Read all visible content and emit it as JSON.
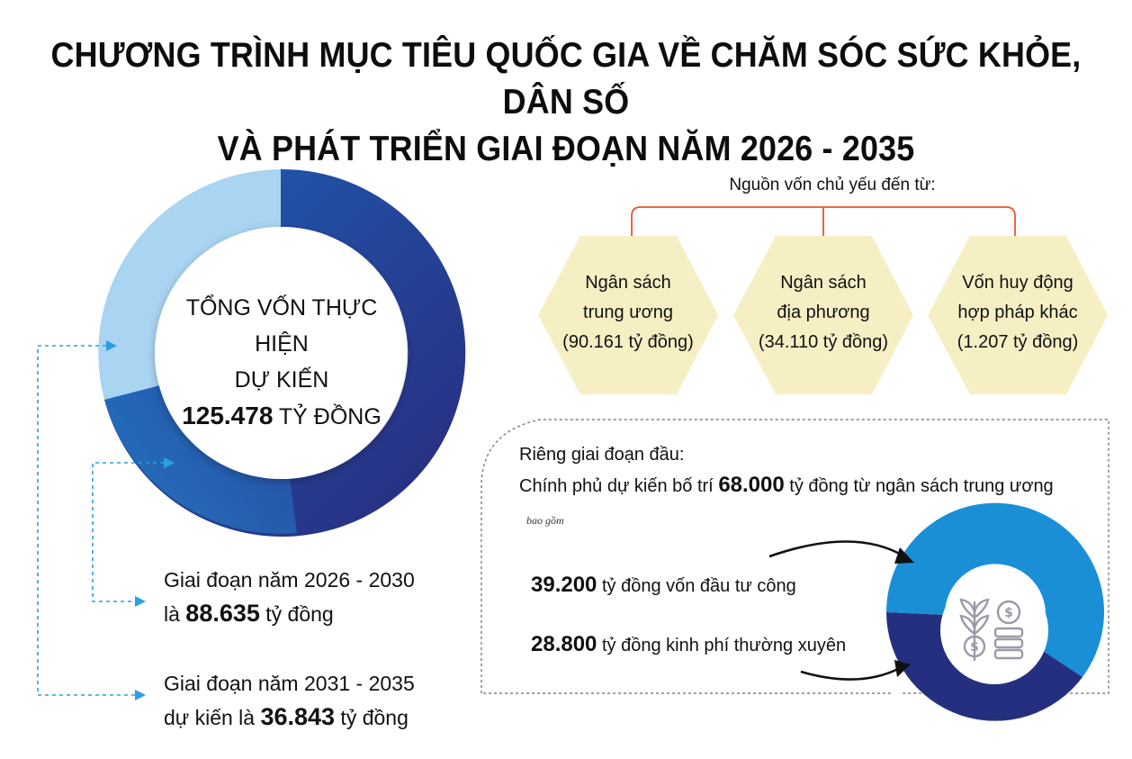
{
  "title": {
    "line1": "CHƯƠNG TRÌNH MỤC TIÊU QUỐC GIA VỀ CHĂM SÓC SỨC KHỎE, DÂN SỐ",
    "line2": "VÀ PHÁT TRIỂN GIAI ĐOẠN NĂM 2026 - 2035"
  },
  "total": {
    "line1": "TỔNG VỐN THỰC HIỆN",
    "line2": "DỰ KIẾN",
    "amount": "125.478",
    "unit": " TỶ ĐỒNG"
  },
  "periods": [
    {
      "line1": "Giai đoạn năm 2026 - 2030",
      "prefix": "là ",
      "amount": "88.635",
      "suffix": " tỷ đồng",
      "value": 88635,
      "color": "#1f63b8"
    },
    {
      "line1": "Giai đoạn năm 2031 - 2035",
      "prefix": "dự kiến là ",
      "amount": "36.843",
      "suffix": " tỷ đồng",
      "value": 36843,
      "color": "#a9d4f2"
    }
  ],
  "sources": {
    "heading": "Nguồn vốn chủ yếu đến từ:",
    "items": [
      {
        "line1": "Ngân sách",
        "line2": "trung ương",
        "line3": "(90.161 tỷ đồng)"
      },
      {
        "line1": "Ngân sách",
        "line2": "địa phương",
        "line3": "(34.110 tỷ đồng)"
      },
      {
        "line1": "Vốn huy động",
        "line2": "hợp pháp khác",
        "line3": "(1.207 tỷ đồng)"
      }
    ]
  },
  "phase1": {
    "line1": "Riêng giai đoạn đầu:",
    "line2_prefix": "Chính phủ dự kiến bố trí ",
    "line2_amount": "68.000",
    "line2_suffix": " tỷ đồng từ ngân sách trung ương",
    "note": "bao gồm",
    "items": [
      {
        "amount": "39.200",
        "label": " tỷ đồng vốn đầu tư công",
        "value": 39200,
        "color": "#1b8fd6"
      },
      {
        "amount": "28.800",
        "label": " tỷ đồng kinh phí thường xuyên",
        "value": 28800,
        "color": "#24307f"
      }
    ]
  },
  "colors": {
    "accent_orange": "#e2582b",
    "hexagon": "#f7efc4",
    "dark_blue": "#24307f",
    "mid_blue": "#1f63b8",
    "light_blue": "#a9d4f2",
    "dashed_blue": "#2aa0e0"
  }
}
